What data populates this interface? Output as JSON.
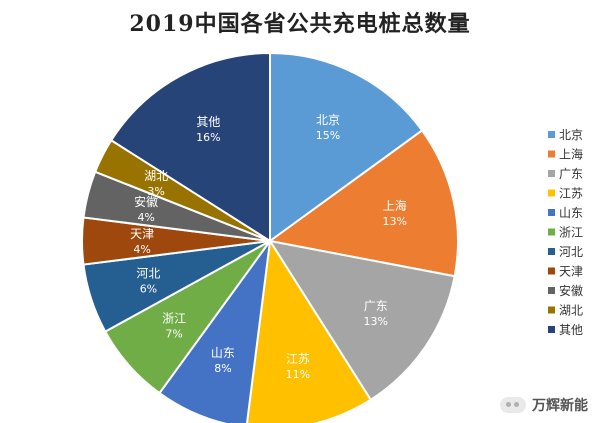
{
  "chart_data": {
    "type": "pie",
    "title": "2019中国各省公共充电桩总数量",
    "slices": [
      {
        "label": "北京",
        "value": 15,
        "pct": "15%",
        "color": "#5b9bd5"
      },
      {
        "label": "上海",
        "value": 13,
        "pct": "13%",
        "color": "#ed7d31"
      },
      {
        "label": "广东",
        "value": 13,
        "pct": "13%",
        "color": "#a5a5a5"
      },
      {
        "label": "江苏",
        "value": 11,
        "pct": "11%",
        "color": "#ffc000"
      },
      {
        "label": "山东",
        "value": 8,
        "pct": "8%",
        "color": "#4472c4"
      },
      {
        "label": "浙江",
        "value": 7,
        "pct": "7%",
        "color": "#70ad47"
      },
      {
        "label": "河北",
        "value": 6,
        "pct": "6%",
        "color": "#255e91"
      },
      {
        "label": "天津",
        "value": 4,
        "pct": "4%",
        "color": "#9e480e"
      },
      {
        "label": "安徽",
        "value": 4,
        "pct": "4%",
        "color": "#636363"
      },
      {
        "label": "湖北",
        "value": 3,
        "pct": "3%",
        "color": "#997300"
      },
      {
        "label": "其他",
        "value": 16,
        "pct": "16%",
        "color": "#264478"
      }
    ],
    "legend_position": "right"
  },
  "watermark": {
    "text": "万辉新能",
    "icon": "wechat-icon"
  }
}
